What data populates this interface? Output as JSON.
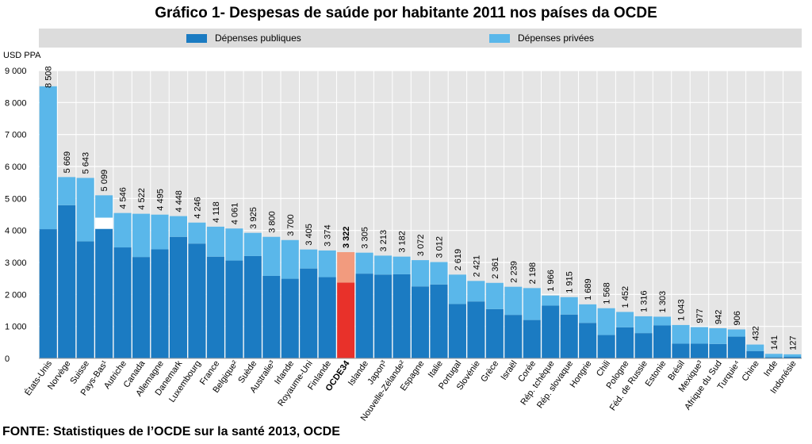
{
  "page": {
    "title": "Gráfico 1- Despesas de saúde por habitante 2011 nos países da OCDE",
    "source": "FONTE: Statistiques de l’OCDE sur la santé 2013, OCDE"
  },
  "legend": {
    "public_label": "Dépenses publiques",
    "private_label": "Dépenses privées"
  },
  "colors": {
    "public": "#1b7bc2",
    "private": "#5ab7ea",
    "oecd_public": "#e8312a",
    "oecd_private": "#f29b7e",
    "plot_bg": "#e5e5e5",
    "grid": "#ffffff"
  },
  "chart_data": {
    "type": "bar",
    "stacked": true,
    "ylabel": "USD PPA",
    "ylim": [
      0,
      9000
    ],
    "yticks": [
      0,
      1000,
      2000,
      3000,
      4000,
      5000,
      6000,
      7000,
      8000,
      9000
    ],
    "ytick_labels": [
      "0",
      "1 000",
      "2 000",
      "3 000",
      "4 000",
      "5 000",
      "6 000",
      "7 000",
      "8 000",
      "9 000"
    ],
    "grid": true,
    "legend_position": "top",
    "categories": [
      "États-Unis",
      "Norvège",
      "Suisse",
      "Pays-Bas¹",
      "Autriche",
      "Canada",
      "Allemagne",
      "Danemark",
      "Luxembourg",
      "France",
      "Belgique²",
      "Suède",
      "Australie³",
      "Irlande",
      "Royaume-Uni",
      "Finlande",
      "OCDE34",
      "Islande",
      "Japon³",
      "Nouvelle-Zélande²",
      "Espagne",
      "Italie",
      "Portugal",
      "Slovénie",
      "Grèce",
      "Israël",
      "Corée",
      "Rép. tchèque",
      "Rép. slovaque",
      "Hongrie",
      "Chili",
      "Pologne",
      "Féd. de Russie",
      "Estonie",
      "Brésil",
      "Mexique³",
      "Afrique du Sud",
      "Turquie⁴",
      "Chine",
      "Inde",
      "Indonésie"
    ],
    "totals": [
      8508,
      5669,
      5643,
      5099,
      4546,
      4522,
      4495,
      4448,
      4246,
      4118,
      4061,
      3925,
      3800,
      3700,
      3405,
      3374,
      3322,
      3305,
      3213,
      3182,
      3072,
      3012,
      2619,
      2421,
      2361,
      2239,
      2198,
      1966,
      1915,
      1689,
      1568,
      1452,
      1316,
      1303,
      1043,
      977,
      942,
      906,
      432,
      141,
      127
    ],
    "total_labels": [
      "8 508",
      "5 669",
      "5 643",
      "5 099",
      "4 546",
      "4 522",
      "4 495",
      "4 448",
      "4 246",
      "4 118",
      "4 061",
      "3 925",
      "3 800",
      "3 700",
      "3 405",
      "3 374",
      "3 322",
      "3 305",
      "3 213",
      "3 182",
      "3 072",
      "3 012",
      "2 619",
      "2 421",
      "2 361",
      "2 239",
      "2 198",
      "1 966",
      "1 915",
      "1 689",
      "1 568",
      "1 452",
      "1 316",
      "1 303",
      "1 043",
      "977",
      "942",
      "906",
      "432",
      "141",
      "127"
    ],
    "series": [
      {
        "name": "Dépenses publiques",
        "values": [
          4040,
          4790,
          3660,
          4050,
          3470,
          3170,
          3410,
          3800,
          3590,
          3180,
          3060,
          3200,
          2580,
          2490,
          2810,
          2540,
          2370,
          2650,
          2620,
          2630,
          2250,
          2310,
          1700,
          1780,
          1540,
          1360,
          1200,
          1650,
          1370,
          1110,
          730,
          970,
          790,
          1030,
          460,
          460,
          450,
          680,
          230,
          40,
          50
        ]
      },
      {
        "name": "Dépenses privées",
        "values": [
          4468,
          879,
          1983,
          1049,
          1076,
          1352,
          1085,
          648,
          656,
          938,
          1001,
          725,
          1220,
          1210,
          595,
          834,
          952,
          655,
          593,
          552,
          822,
          702,
          919,
          641,
          821,
          879,
          998,
          316,
          545,
          579,
          838,
          482,
          526,
          273,
          583,
          517,
          492,
          226,
          202,
          101,
          77
        ]
      }
    ],
    "highlight_index": 16,
    "gap_band": {
      "category": "Pays-Bas¹",
      "from": 4050,
      "to": 4400
    }
  }
}
